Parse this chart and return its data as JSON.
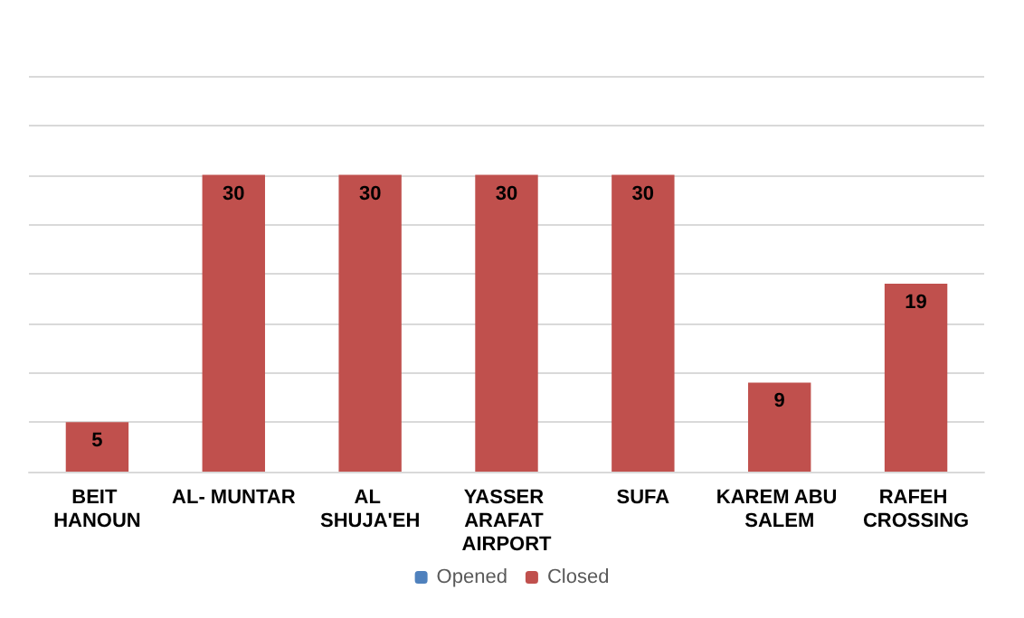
{
  "chart_data": {
    "type": "bar",
    "categories": [
      "BEIT HANOUN",
      "AL- MUNTAR",
      "AL SHUJA'EH",
      "YASSER ARAFAT AIRPORT",
      "SUFA",
      "KAREM ABU SALEM",
      "RAFEH CROSSING"
    ],
    "series": [
      {
        "name": "Opened",
        "color": "#4f81bd",
        "values": [
          0,
          0,
          0,
          0,
          0,
          0,
          0
        ]
      },
      {
        "name": "Closed",
        "color": "#c0504d",
        "values": [
          5,
          30,
          30,
          30,
          30,
          9,
          19
        ],
        "value_labels": [
          "5",
          "30",
          "30",
          "30",
          "30",
          "9",
          "19"
        ]
      }
    ],
    "ylim": [
      0,
      40
    ],
    "yticks": [
      0,
      5,
      10,
      15,
      20,
      25,
      30,
      35,
      40
    ],
    "tick_labels": "x",
    "grid": "y",
    "legend": "bottom"
  }
}
